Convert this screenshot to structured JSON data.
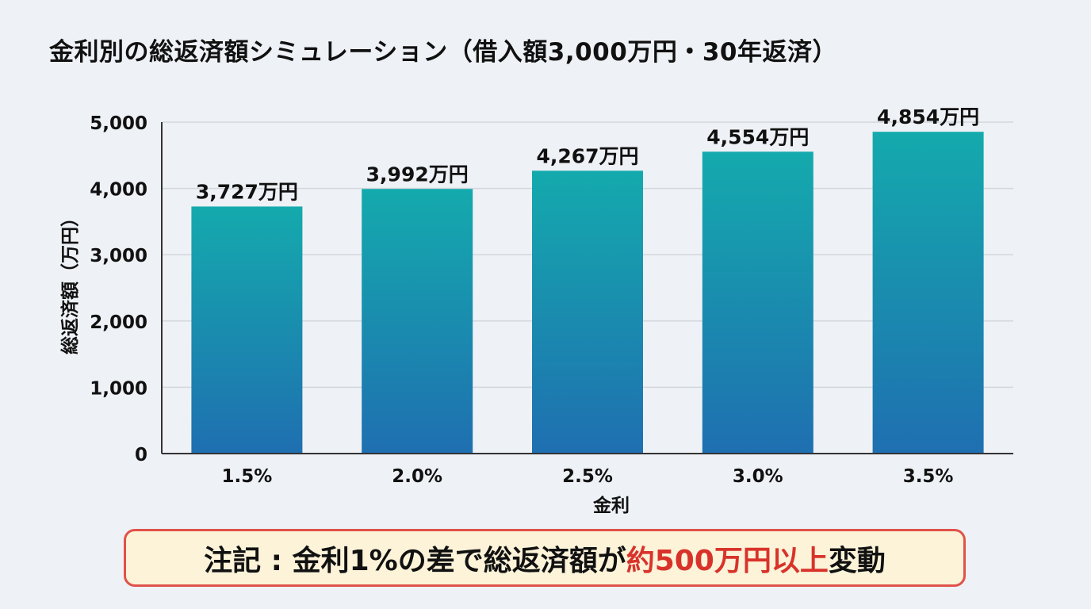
{
  "chart_data": {
    "type": "bar",
    "title": "金利別の総返済額シミュレーション（借入額3,000万円・30年返済）",
    "xlabel": "金利",
    "ylabel": "総返済額（万円）",
    "categories": [
      "1.5%",
      "2.0%",
      "2.5%",
      "3.0%",
      "3.5%"
    ],
    "values": [
      3727,
      3992,
      4267,
      4554,
      4854
    ],
    "data_labels": [
      "3,727万円",
      "3,992万円",
      "4,267万円",
      "4,554万円",
      "4,854万円"
    ],
    "ylim": [
      0,
      5000
    ],
    "yticks": [
      0,
      1000,
      2000,
      3000,
      4000,
      5000
    ],
    "ytick_labels": [
      "0",
      "1,000",
      "2,000",
      "3,000",
      "4,000",
      "5,000"
    ],
    "grid": true,
    "colors": {
      "bar_top": "#14aaad",
      "bar_bottom": "#1f6fb0",
      "grid": "#d3d7dc",
      "axis": "#333333"
    }
  },
  "note": {
    "prefix": "注記 : 金利1%の差で総返済額が",
    "highlight": "約500万円以上",
    "suffix": "変動",
    "highlight_color": "#d8332b",
    "border_color": "#e0524a",
    "background": "#fcf3d9"
  }
}
